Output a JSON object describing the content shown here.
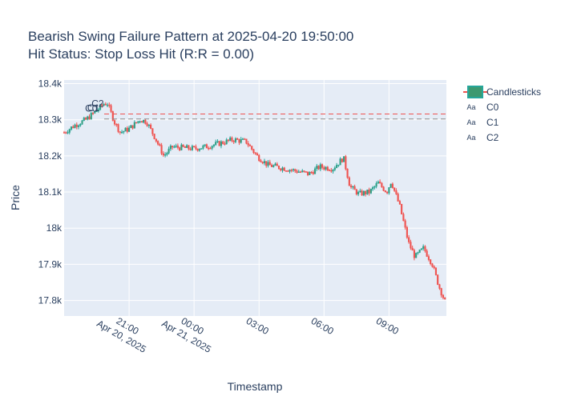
{
  "chart_data": {
    "type": "candlestick",
    "title_lines": [
      "Bearish Swing Failure Pattern at 2025-04-20 19:50:00",
      "Hit Status: Stop Loss Hit (R:R = 0.00)"
    ],
    "xlabel": "Timestamp",
    "ylabel": "Price",
    "ylim": [
      17757,
      18410
    ],
    "xlim_hours": [
      18.0,
      35.65
    ],
    "x_ticks": [
      {
        "hour": 21,
        "line1": "21:00",
        "line2": "Apr 20, 2025"
      },
      {
        "hour": 24,
        "line1": "00:00",
        "line2": "Apr 21, 2025"
      },
      {
        "hour": 27,
        "line1": "03:00",
        "line2": ""
      },
      {
        "hour": 30,
        "line1": "06:00",
        "line2": ""
      },
      {
        "hour": 33,
        "line1": "09:00",
        "line2": ""
      }
    ],
    "y_ticks": [
      {
        "value": 17800,
        "label": "17.8k"
      },
      {
        "value": 17900,
        "label": "17.9k"
      },
      {
        "value": 18000,
        "label": "18k"
      },
      {
        "value": 18100,
        "label": "18.1k"
      },
      {
        "value": 18200,
        "label": "18.2k"
      },
      {
        "value": 18300,
        "label": "18.3k"
      },
      {
        "value": 18400,
        "label": "18.4k"
      }
    ],
    "grid": true,
    "legend_position": "top-right",
    "legend": [
      {
        "name": "Candlisticks",
        "label": "Candlesticks",
        "symbol": "candle"
      },
      {
        "name": "C0",
        "label": "C0",
        "symbol": "text"
      },
      {
        "name": "C1",
        "label": "C1",
        "symbol": "text"
      },
      {
        "name": "C2",
        "label": "C2",
        "symbol": "text"
      }
    ],
    "legend_symbol_text": "Aa",
    "annotations": [
      {
        "text": "C0",
        "hour": 19.25,
        "price": 18331
      },
      {
        "text": "C1",
        "hour": 19.35,
        "price": 18333
      },
      {
        "text": "C2",
        "hour": 19.55,
        "price": 18345
      }
    ],
    "reference_lines": [
      {
        "name": "stop-loss-line",
        "price": 18316,
        "color": "#ef5350",
        "from_hour": 19.85
      },
      {
        "name": "entry-line",
        "price": 18302,
        "color": "#888888",
        "from_hour": 19.85
      }
    ],
    "candle_interval_minutes": 5,
    "colors": {
      "up": "#26a69a",
      "up_fill": "#3d9970",
      "down": "#ef5350",
      "plot_bg": "#e5ecf6",
      "grid": "#ffffff"
    },
    "price_path": [
      {
        "hour": 18.0,
        "price": 18265
      },
      {
        "hour": 18.5,
        "price": 18285
      },
      {
        "hour": 19.0,
        "price": 18300
      },
      {
        "hour": 19.5,
        "price": 18325
      },
      {
        "hour": 19.85,
        "price": 18345
      },
      {
        "hour": 20.0,
        "price": 18345
      },
      {
        "hour": 20.35,
        "price": 18290
      },
      {
        "hour": 20.6,
        "price": 18265
      },
      {
        "hour": 21.0,
        "price": 18275
      },
      {
        "hour": 21.5,
        "price": 18300
      },
      {
        "hour": 21.8,
        "price": 18295
      },
      {
        "hour": 22.2,
        "price": 18250
      },
      {
        "hour": 22.6,
        "price": 18200
      },
      {
        "hour": 23.0,
        "price": 18225
      },
      {
        "hour": 24.0,
        "price": 18220
      },
      {
        "hour": 24.5,
        "price": 18225
      },
      {
        "hour": 25.2,
        "price": 18235
      },
      {
        "hour": 25.8,
        "price": 18245
      },
      {
        "hour": 26.4,
        "price": 18240
      },
      {
        "hour": 26.9,
        "price": 18200
      },
      {
        "hour": 27.4,
        "price": 18175
      },
      {
        "hour": 27.8,
        "price": 18170
      },
      {
        "hour": 28.6,
        "price": 18160
      },
      {
        "hour": 29.3,
        "price": 18150
      },
      {
        "hour": 29.8,
        "price": 18170
      },
      {
        "hour": 30.4,
        "price": 18165
      },
      {
        "hour": 30.9,
        "price": 18195
      },
      {
        "hour": 31.2,
        "price": 18115
      },
      {
        "hour": 31.6,
        "price": 18095
      },
      {
        "hour": 32.1,
        "price": 18100
      },
      {
        "hour": 32.5,
        "price": 18125
      },
      {
        "hour": 32.9,
        "price": 18100
      },
      {
        "hour": 33.1,
        "price": 18130
      },
      {
        "hour": 33.5,
        "price": 18060
      },
      {
        "hour": 33.9,
        "price": 17960
      },
      {
        "hour": 34.2,
        "price": 17920
      },
      {
        "hour": 34.6,
        "price": 17945
      },
      {
        "hour": 35.0,
        "price": 17900
      },
      {
        "hour": 35.3,
        "price": 17840
      },
      {
        "hour": 35.6,
        "price": 17795
      }
    ]
  }
}
